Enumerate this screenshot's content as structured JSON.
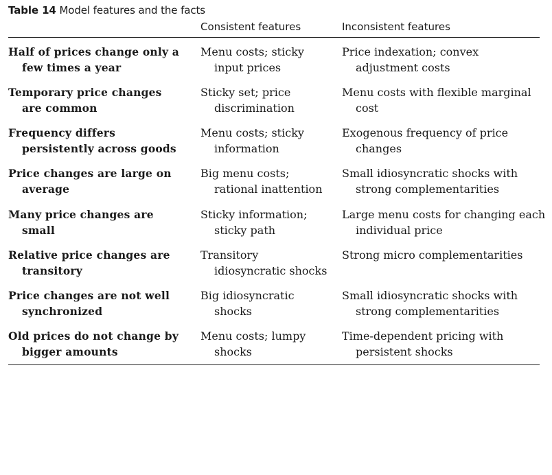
{
  "table": {
    "caption_number": "Table 14",
    "caption_text": "Model features and the facts",
    "headers": {
      "fact": "",
      "consistent": "Consistent features",
      "inconsistent": "Inconsistent features"
    },
    "rows": [
      {
        "fact": [
          "Half of prices change only a",
          "few times a year"
        ],
        "consistent": [
          "Menu costs; sticky",
          "input prices"
        ],
        "inconsistent": [
          "Price indexation; convex",
          "adjustment costs"
        ]
      },
      {
        "fact": [
          "Temporary price changes",
          "are common"
        ],
        "consistent": [
          "Sticky set; price",
          "discrimination"
        ],
        "inconsistent": [
          "Menu costs with flexible marginal",
          "cost"
        ]
      },
      {
        "fact": [
          "Frequency differs",
          "persistently across goods"
        ],
        "consistent": [
          "Menu costs; sticky",
          "information"
        ],
        "inconsistent": [
          "Exogenous frequency of price",
          "changes"
        ]
      },
      {
        "fact": [
          "Price changes are large on",
          "average"
        ],
        "consistent": [
          "Big menu costs;",
          "rational inattention"
        ],
        "inconsistent": [
          "Small idiosyncratic shocks with",
          "strong complementarities"
        ]
      },
      {
        "fact": [
          "Many price changes are",
          "small"
        ],
        "consistent": [
          "Sticky information;",
          "sticky path"
        ],
        "inconsistent": [
          "Large menu costs for changing each",
          "individual price"
        ]
      },
      {
        "fact": [
          "Relative price changes are",
          "transitory"
        ],
        "consistent": [
          "Transitory",
          "idiosyncratic shocks"
        ],
        "inconsistent": [
          "Strong micro complementarities",
          ""
        ]
      },
      {
        "fact": [
          "Price changes are not well",
          "synchronized"
        ],
        "consistent": [
          "Big idiosyncratic",
          "shocks"
        ],
        "inconsistent": [
          "Small idiosyncratic shocks with",
          "strong complementarities"
        ]
      },
      {
        "fact": [
          "Old prices do not change by",
          "bigger amounts"
        ],
        "consistent": [
          "Menu costs; lumpy",
          "shocks"
        ],
        "inconsistent": [
          "Time-dependent pricing with",
          "persistent shocks"
        ]
      }
    ]
  }
}
